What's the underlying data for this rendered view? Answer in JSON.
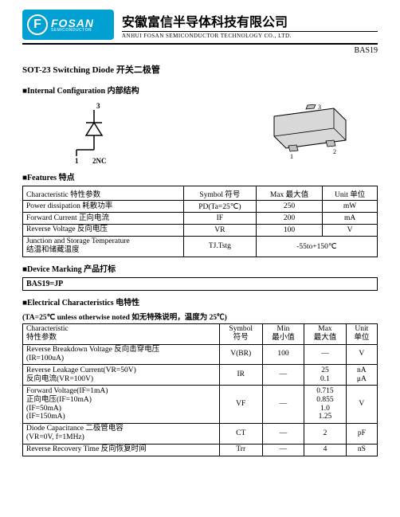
{
  "header": {
    "logo_letter": "F",
    "logo_main": "FOSAN",
    "logo_sub": "SEMICONDUCTOR",
    "company_cn": "安徽富信半导体科技有限公司",
    "company_en": "ANHUI FOSAN SEMICONDUCTOR TECHNOLOGY CO., LTD."
  },
  "part_no": "BAS19",
  "title": "SOT-23 Switching Diode 开关二极管",
  "sections": {
    "internal": "■Internal Configuration 内部结构",
    "features": "■Features 特点",
    "marking": "■Device Marking 产品打标",
    "electrical": "■Electrical Characteristics 电特性"
  },
  "internal_diagram": {
    "pin3": "3",
    "pin1": "1",
    "pin2": "2NC",
    "pkg_pin1": "1",
    "pkg_pin2": "2",
    "pkg_pin3": "3"
  },
  "features_table": {
    "head": {
      "char": "Characteristic 特性参数",
      "sym": "Symbol 符号",
      "max": "Max 最大值",
      "unit": "Unit 单位"
    },
    "rows": [
      {
        "char": "Power dissipation 耗散功率",
        "sym": "PD(Ta=25℃)",
        "max": "250",
        "unit": "mW"
      },
      {
        "char": "Forward Current 正向电流",
        "sym": "IF",
        "max": "200",
        "unit": "mA"
      },
      {
        "char": "Reverse Voltage 反向电压",
        "sym": "VR",
        "max": "100",
        "unit": "V"
      },
      {
        "char": "Junction and Storage Temperature\n结温和储藏温度",
        "sym": "TJ.Tstg",
        "max": "-55to+150℃",
        "unit": ""
      }
    ]
  },
  "marking_value": "BAS19=JP",
  "electrical_note": "(TA=25℃ unless otherwise noted 如无特殊说明，温度为 25℃)",
  "electrical_table": {
    "head": {
      "char": "Characteristic\n特性参数",
      "sym": "Symbol\n符号",
      "min": "Min\n最小值",
      "max": "Max\n最大值",
      "unit": "Unit\n单位"
    },
    "rows": [
      {
        "char": "Reverse Breakdown Voltage 反向击穿电压\n(IR=100uA)",
        "sym": "V(BR)",
        "min": "100",
        "max": "—",
        "unit": "V"
      },
      {
        "char": "Reverse Leakage Current(VR=50V)\n反向电流(VR=100V)",
        "sym": "IR",
        "min": "—",
        "max": "25\n0.1",
        "unit": "nA\nμA"
      },
      {
        "char": "Forward Voltage(IF=1mA)\n正向电压(IF=10mA)\n(IF=50mA)\n(IF=150mA)",
        "sym": "VF",
        "min": "—",
        "max": "0.715\n0.855\n1.0\n1.25",
        "unit": "V"
      },
      {
        "char": "Diode Capacitance 二极管电容\n(VR=0V, f=1MHz)",
        "sym": "CT",
        "min": "—",
        "max": "2",
        "unit": "pF"
      },
      {
        "char": "Reverse Recovery Time 反向恢复时间",
        "sym": "Trr",
        "min": "—",
        "max": "4",
        "unit": "nS"
      }
    ]
  },
  "colors": {
    "brand": "#00a0d2",
    "text": "#000000",
    "bg": "#ffffff"
  }
}
